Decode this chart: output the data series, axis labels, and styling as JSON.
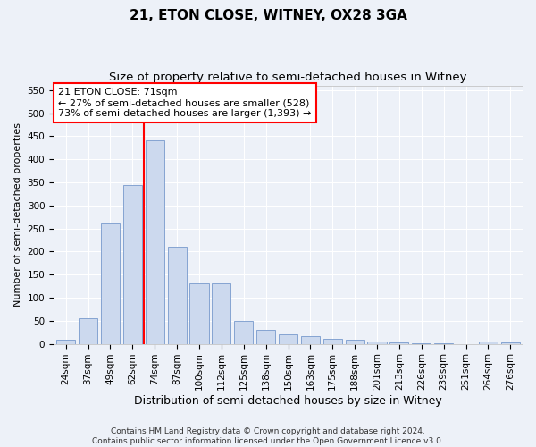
{
  "title1": "21, ETON CLOSE, WITNEY, OX28 3GA",
  "title2": "Size of property relative to semi-detached houses in Witney",
  "xlabel": "Distribution of semi-detached houses by size in Witney",
  "ylabel": "Number of semi-detached properties",
  "categories": [
    "24sqm",
    "37sqm",
    "49sqm",
    "62sqm",
    "74sqm",
    "87sqm",
    "100sqm",
    "112sqm",
    "125sqm",
    "138sqm",
    "150sqm",
    "163sqm",
    "175sqm",
    "188sqm",
    "201sqm",
    "213sqm",
    "226sqm",
    "239sqm",
    "251sqm",
    "264sqm",
    "276sqm"
  ],
  "values": [
    8,
    55,
    260,
    345,
    440,
    210,
    130,
    130,
    50,
    30,
    20,
    17,
    10,
    8,
    5,
    3,
    2,
    2,
    0,
    5,
    3
  ],
  "bar_color": "#ccd9ee",
  "bar_edge_color": "#7799cc",
  "vline_x": 3.5,
  "vline_color": "red",
  "annotation_text": "21 ETON CLOSE: 71sqm\n← 27% of semi-detached houses are smaller (528)\n73% of semi-detached houses are larger (1,393) →",
  "annotation_box_color": "white",
  "annotation_box_edge": "red",
  "ylim": [
    0,
    560
  ],
  "yticks": [
    0,
    50,
    100,
    150,
    200,
    250,
    300,
    350,
    400,
    450,
    500,
    550
  ],
  "footer1": "Contains HM Land Registry data © Crown copyright and database right 2024.",
  "footer2": "Contains public sector information licensed under the Open Government Licence v3.0.",
  "bg_color": "#edf1f8",
  "plot_bg_color": "#edf1f8",
  "grid_color": "white",
  "title1_fontsize": 11,
  "title2_fontsize": 9.5,
  "xlabel_fontsize": 9,
  "ylabel_fontsize": 8,
  "tick_fontsize": 7.5,
  "annotation_fontsize": 8,
  "footer_fontsize": 6.5
}
